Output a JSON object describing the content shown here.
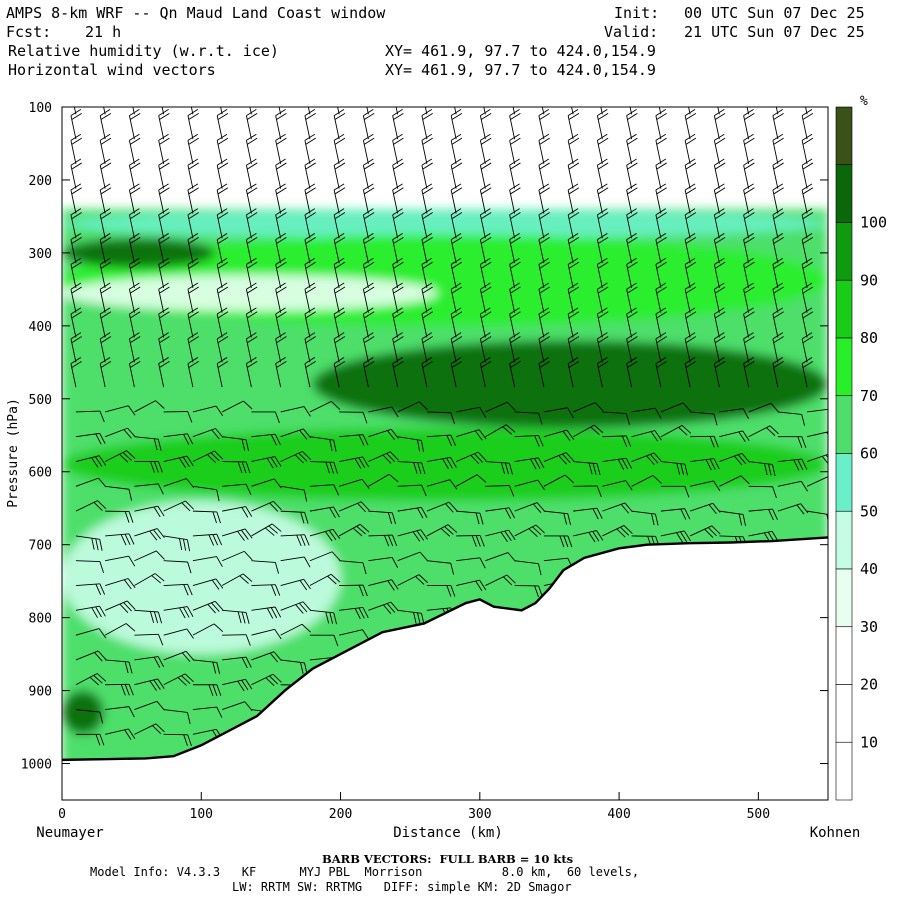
{
  "header": {
    "model_title": "AMPS 8-km WRF -- Qn Maud Land Coast window",
    "init_label": "Init:",
    "init_value": "00 UTC Sun 07 Dec 25",
    "fcst_label": "Fcst:",
    "fcst_value": "21 h",
    "valid_label": "Valid:",
    "valid_value": "21 UTC Sun 07 Dec 25",
    "field1": "Relative humidity (w.r.t. ice)",
    "field1_xy": "XY= 461.9, 97.7 to 424.0,154.9",
    "field2": "Horizontal wind vectors",
    "field2_xy": "XY= 461.9, 97.7 to 424.0,154.9"
  },
  "footer": {
    "barb_note": "BARB VECTORS:  FULL BARB = 10 kts",
    "model_info_1": "Model Info: V4.3.3   KF      MYJ PBL  Morrison           8.0 km,  60 levels,",
    "model_info_2": "LW: RRTM SW: RRTMG   DIFF: simple KM: 2D Smagor"
  },
  "chart_data": {
    "type": "heatmap",
    "title": "Relative humidity (w.r.t. ice)",
    "xlabel": "Distance (km)",
    "ylabel": "Pressure (hPa)",
    "xlim": [
      0,
      550
    ],
    "ylim": [
      1050,
      100
    ],
    "x_ticks": [
      0,
      100,
      200,
      300,
      400,
      500
    ],
    "y_ticks": [
      100,
      200,
      300,
      400,
      500,
      600,
      700,
      800,
      900,
      1000
    ],
    "x_endpoint_labels": [
      "Neumayer",
      "Kohnen"
    ],
    "colorbar": {
      "unit": "%",
      "tick_labels": [
        10,
        20,
        30,
        40,
        50,
        60,
        70,
        80,
        90,
        100
      ],
      "levels": [
        0,
        10,
        20,
        30,
        40,
        50,
        60,
        70,
        80,
        90,
        100,
        110
      ],
      "colors": [
        "#ffffff",
        "#ffffff",
        "#ffffff",
        "#e6fff0",
        "#c4fce4",
        "#6af0c8",
        "#4ddf6a",
        "#28ef28",
        "#18cc18",
        "#109a10",
        "#0a680a",
        "#3a5218"
      ]
    },
    "terrain_surface_hPa": [
      [
        0,
        995
      ],
      [
        30,
        994
      ],
      [
        60,
        993
      ],
      [
        80,
        990
      ],
      [
        100,
        975
      ],
      [
        120,
        955
      ],
      [
        140,
        935
      ],
      [
        160,
        900
      ],
      [
        180,
        870
      ],
      [
        200,
        850
      ],
      [
        230,
        820
      ],
      [
        260,
        808
      ],
      [
        290,
        780
      ],
      [
        300,
        775
      ],
      [
        310,
        785
      ],
      [
        330,
        790
      ],
      [
        340,
        780
      ],
      [
        350,
        760
      ],
      [
        360,
        735
      ],
      [
        375,
        718
      ],
      [
        400,
        705
      ],
      [
        420,
        700
      ],
      [
        450,
        698
      ],
      [
        480,
        697
      ],
      [
        510,
        695
      ],
      [
        550,
        690
      ]
    ],
    "rh_regions": [
      {
        "name": "upper-cloud-base",
        "level": 50,
        "x": [
          0,
          550
        ],
        "p_top": 240,
        "p_bottom": 280
      },
      {
        "name": "upper-moist-band",
        "level": 70,
        "x": [
          0,
          550
        ],
        "p_top": 275,
        "p_bottom": 400
      },
      {
        "name": "left-upper-core",
        "level": 100,
        "x": [
          0,
          110
        ],
        "p_top": 280,
        "p_bottom": 320
      },
      {
        "name": "dry-slot",
        "level": 30,
        "x": [
          0,
          270
        ],
        "p_top": 330,
        "p_bottom": 380
      },
      {
        "name": "mid-level-saturated",
        "level": 100,
        "x": [
          180,
          550
        ],
        "p_top": 420,
        "p_bottom": 540
      },
      {
        "name": "mid-level-band",
        "level": 80,
        "x": [
          0,
          550
        ],
        "p_top": 540,
        "p_bottom": 640
      },
      {
        "name": "low-level-dry",
        "level": 40,
        "x": [
          0,
          200
        ],
        "p_top": 640,
        "p_bottom": 850
      },
      {
        "name": "boundary-core",
        "level": 100,
        "x": [
          0,
          30
        ],
        "p_top": 900,
        "p_bottom": 960
      }
    ],
    "wind_barbs": "FULL BARB = 10 kts"
  }
}
